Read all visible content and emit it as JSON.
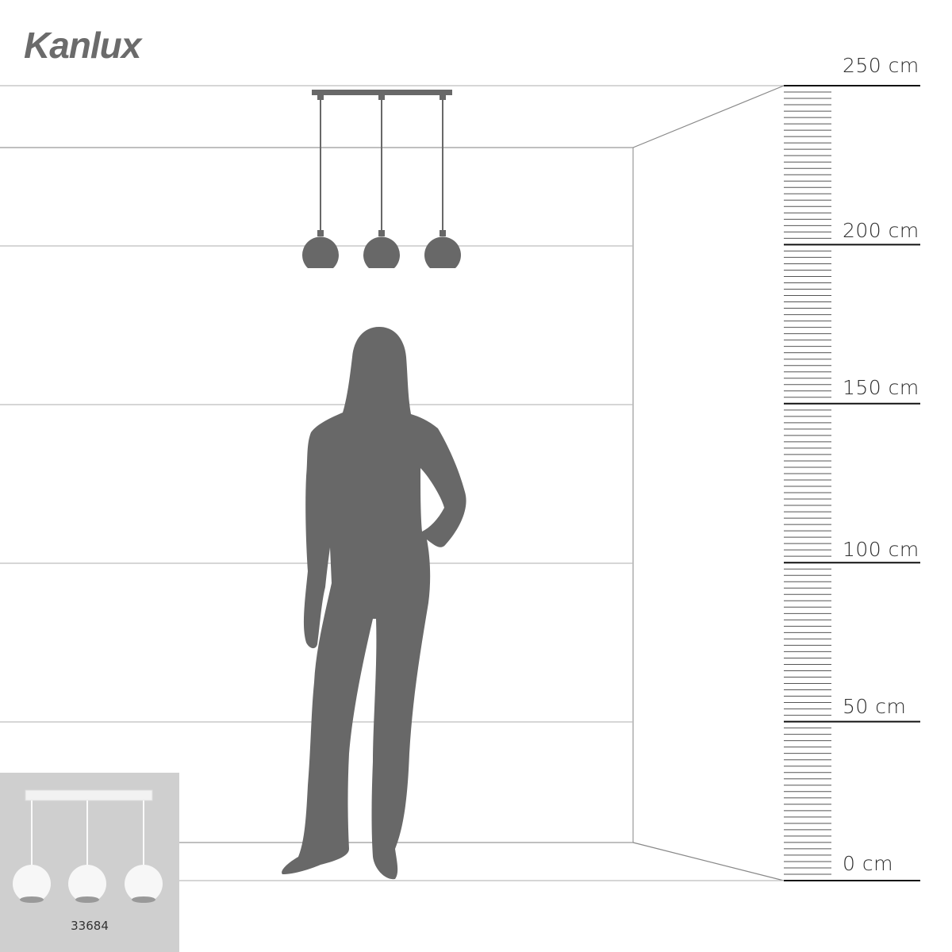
{
  "brand": {
    "logo_text": "Kanlux"
  },
  "scale": {
    "unit": "cm",
    "labels": [
      "250 cm",
      "200 cm",
      "150 cm",
      "100 cm",
      "50 cm",
      "0 cm"
    ],
    "values": [
      250,
      200,
      150,
      100,
      50,
      0
    ],
    "minor_tick_step_cm": 2
  },
  "product": {
    "code": "33684",
    "type": "3-light pendant, spherical shades"
  },
  "colors": {
    "silhouette": "#686868",
    "lines": "#bdbdbd",
    "thumb_bg": "#cfcfcf",
    "logo": "#6b6b6b"
  }
}
